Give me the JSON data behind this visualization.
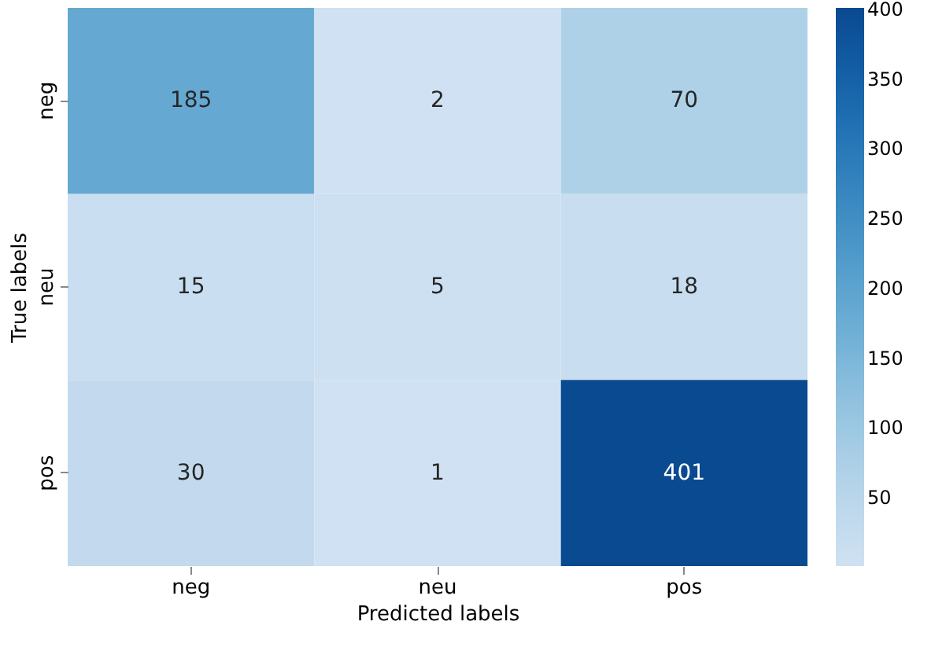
{
  "chart_data": {
    "type": "heatmap",
    "xlabel": "Predicted labels",
    "ylabel": "True labels",
    "categories": [
      "neg",
      "neu",
      "pos"
    ],
    "y_categories": [
      "neg",
      "neu",
      "pos"
    ],
    "cells": [
      [
        185,
        2,
        70
      ],
      [
        15,
        5,
        18
      ],
      [
        30,
        1,
        401
      ]
    ],
    "data_labels": true,
    "clim": [
      1,
      401
    ],
    "cticks": [
      50,
      100,
      150,
      200,
      250,
      300,
      350,
      400
    ]
  }
}
